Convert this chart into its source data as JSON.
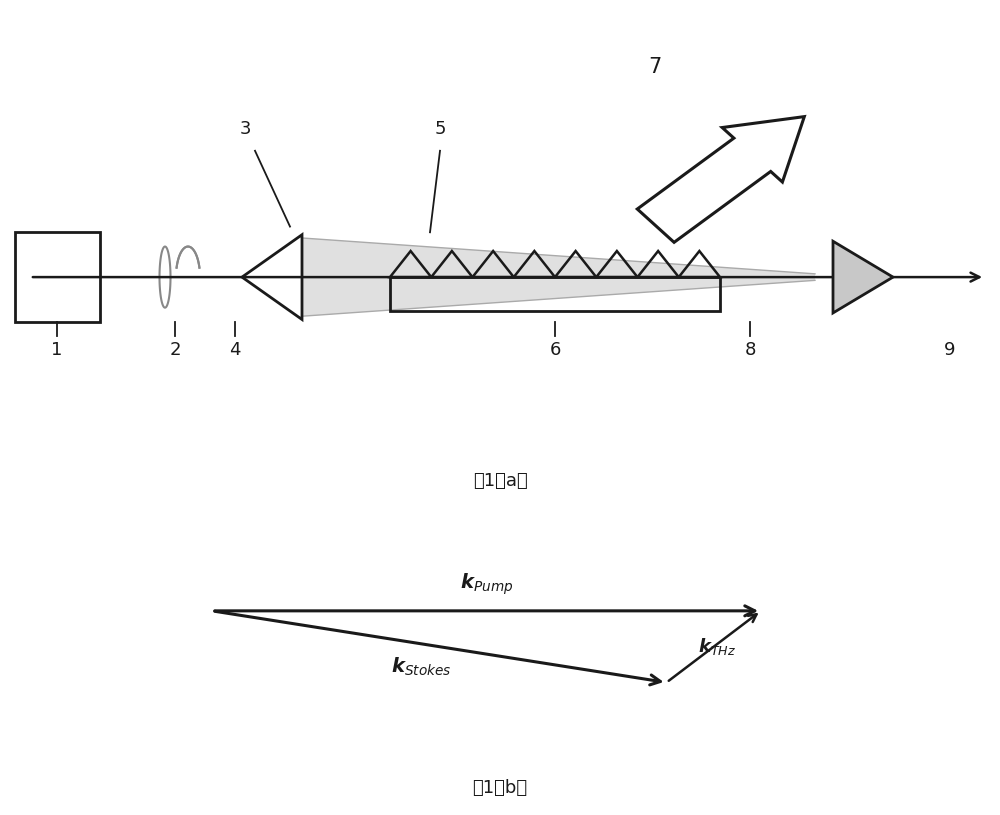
{
  "bg_color": "#ffffff",
  "line_color": "#1a1a1a",
  "gray_fill": "#c8c8c8",
  "fig_width": 10.0,
  "fig_height": 8.15,
  "caption_a": "图1（a）",
  "caption_b": "图1（b）",
  "labels": [
    "1",
    "2",
    "3",
    "4",
    "5",
    "6",
    "7",
    "8",
    "9"
  ]
}
